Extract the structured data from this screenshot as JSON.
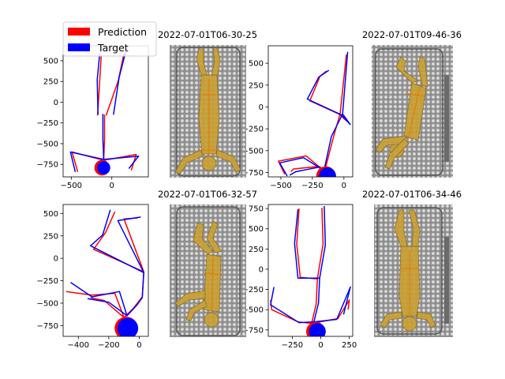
{
  "colors": {
    "prediction": "#ff0000",
    "target": "#0000ff",
    "frame": "#000000",
    "photo_body": "#c9a035"
  },
  "legend": {
    "placement": "top-left",
    "items": [
      {
        "label": "Prediction",
        "color": "#ff0000"
      },
      {
        "label": "Target",
        "color": "#0000ff"
      }
    ]
  },
  "chart_data": [
    {
      "type": "line",
      "title": "",
      "xlim": [
        -600,
        450
      ],
      "ylim": [
        -900,
        680
      ],
      "xticks": [
        {
          "v": -500,
          "label": "−500"
        },
        {
          "v": 0,
          "label": "0"
        }
      ],
      "yticks": [
        {
          "v": 500,
          "label": "500"
        },
        {
          "v": 250,
          "label": "250"
        },
        {
          "v": 0,
          "label": "0"
        },
        {
          "v": -250,
          "label": "−250"
        },
        {
          "v": -500,
          "label": "−500"
        },
        {
          "v": -750,
          "label": "−750"
        }
      ],
      "head": {
        "x": -100,
        "y": -790,
        "r": 60
      },
      "series": [
        {
          "name": "Prediction",
          "color": "#ff0000",
          "strokes": [
            [
              [
                -420,
                -840
              ],
              [
                -490,
                -600
              ],
              [
                -100,
                -700
              ],
              [
                300,
                -630
              ],
              [
                240,
                -820
              ]
            ],
            [
              [
                -100,
                -700
              ],
              [
                -90,
                -450
              ],
              [
                -90,
                -150
              ]
            ],
            [
              [
                -175,
                -160
              ],
              [
                -150,
                250
              ],
              [
                -130,
                560
              ]
            ],
            [
              [
                -70,
                -160
              ],
              [
                80,
                260
              ],
              [
                150,
                590
              ]
            ]
          ]
        },
        {
          "name": "Target",
          "color": "#0000ff",
          "strokes": [
            [
              [
                -450,
                -840
              ],
              [
                -510,
                -600
              ],
              [
                -100,
                -690
              ],
              [
                330,
                -650
              ],
              [
                210,
                -800
              ]
            ],
            [
              [
                -100,
                -690
              ],
              [
                -110,
                -440
              ],
              [
                -110,
                -140
              ]
            ],
            [
              [
                -170,
                -150
              ],
              [
                -180,
                270
              ],
              [
                -150,
                580
              ]
            ],
            [
              [
                20,
                -150
              ],
              [
                90,
                300
              ],
              [
                180,
                640
              ]
            ]
          ]
        }
      ]
    },
    {
      "type": "line",
      "title": "",
      "xlim": [
        -600,
        70
      ],
      "ylim": [
        -800,
        700
      ],
      "xticks": [
        {
          "v": -500,
          "label": "−500"
        },
        {
          "v": -250,
          "label": "−250"
        },
        {
          "v": 0,
          "label": "0"
        }
      ],
      "yticks": [
        {
          "v": 500,
          "label": "500"
        },
        {
          "v": 250,
          "label": "250"
        },
        {
          "v": 0,
          "label": "0"
        },
        {
          "v": -250,
          "label": "−250"
        },
        {
          "v": -500,
          "label": "−500"
        },
        {
          "v": -750,
          "label": "−750"
        }
      ],
      "head": {
        "x": -130,
        "y": -790,
        "r": 55
      },
      "series": [
        {
          "name": "Prediction",
          "color": "#ff0000",
          "strokes": [
            [
              [
                -470,
                -770
              ],
              [
                -520,
                -620
              ],
              [
                -300,
                -560
              ],
              [
                -200,
                -680
              ],
              [
                -400,
                -710
              ],
              [
                -420,
                -740
              ]
            ],
            [
              [
                -200,
                -680
              ],
              [
                -150,
                -720
              ],
              [
                -80,
                -330
              ],
              [
                -30,
                -80
              ],
              [
                30,
                -170
              ],
              [
                -40,
                -80
              ],
              [
                -270,
                70
              ],
              [
                -190,
                350
              ],
              [
                -140,
                410
              ]
            ],
            [
              [
                -30,
                -80
              ],
              [
                20,
                600
              ]
            ]
          ]
        },
        {
          "name": "Target",
          "color": "#0000ff",
          "strokes": [
            [
              [
                -450,
                -790
              ],
              [
                -510,
                -640
              ],
              [
                -320,
                -580
              ],
              [
                -200,
                -690
              ],
              [
                -380,
                -740
              ],
              [
                -430,
                -780
              ]
            ],
            [
              [
                -200,
                -690
              ],
              [
                -160,
                -740
              ],
              [
                -100,
                -340
              ],
              [
                -10,
                -80
              ],
              [
                50,
                -200
              ],
              [
                -20,
                -90
              ],
              [
                -290,
                90
              ],
              [
                -200,
                340
              ],
              [
                -120,
                420
              ]
            ],
            [
              [
                -10,
                -80
              ],
              [
                30,
                630
              ]
            ]
          ]
        }
      ]
    },
    {
      "type": "line",
      "title": "",
      "xlim": [
        -500,
        60
      ],
      "ylim": [
        -870,
        600
      ],
      "xticks": [
        {
          "v": -400,
          "label": "−400"
        },
        {
          "v": -200,
          "label": "−200"
        },
        {
          "v": 0,
          "label": "0"
        }
      ],
      "yticks": [
        {
          "v": 500,
          "label": "500"
        },
        {
          "v": 250,
          "label": "250"
        },
        {
          "v": 0,
          "label": "0"
        },
        {
          "v": -250,
          "label": "−250"
        },
        {
          "v": -500,
          "label": "−500"
        },
        {
          "v": -750,
          "label": "−750"
        }
      ],
      "head": {
        "x": -75,
        "y": -780,
        "r": 58
      },
      "series": [
        {
          "name": "Prediction",
          "color": "#ff0000",
          "strokes": [
            [
              [
                -480,
                -370
              ],
              [
                -310,
                -410
              ],
              [
                -160,
                -390
              ],
              [
                -100,
                -660
              ],
              [
                -230,
                -470
              ],
              [
                -320,
                -440
              ]
            ],
            [
              [
                -100,
                -660
              ],
              [
                -40,
                -560
              ],
              [
                20,
                -430
              ],
              [
                30,
                -150
              ],
              [
                -300,
                100
              ],
              [
                -220,
                290
              ],
              [
                -160,
                520
              ]
            ],
            [
              [
                30,
                -150
              ],
              [
                -100,
                440
              ],
              [
                -10,
                450
              ]
            ]
          ]
        },
        {
          "name": "Target",
          "color": "#0000ff",
          "strokes": [
            [
              [
                -450,
                -270
              ],
              [
                -310,
                -430
              ],
              [
                -130,
                -370
              ],
              [
                -80,
                -640
              ],
              [
                -200,
                -490
              ],
              [
                -340,
                -450
              ]
            ],
            [
              [
                -80,
                -640
              ],
              [
                -20,
                -530
              ],
              [
                20,
                -440
              ],
              [
                30,
                -160
              ],
              [
                -320,
                140
              ],
              [
                -240,
                260
              ],
              [
                -190,
                540
              ]
            ],
            [
              [
                30,
                -160
              ],
              [
                -140,
                420
              ],
              [
                10,
                460
              ]
            ]
          ]
        }
      ]
    },
    {
      "type": "line",
      "title": "",
      "xlim": [
        -460,
        280
      ],
      "ylim": [
        -830,
        800
      ],
      "xticks": [
        {
          "v": -250,
          "label": "−250"
        },
        {
          "v": 0,
          "label": "0"
        },
        {
          "v": 250,
          "label": "250"
        }
      ],
      "yticks": [
        {
          "v": 750,
          "label": "750"
        },
        {
          "v": 500,
          "label": "500"
        },
        {
          "v": 250,
          "label": "250"
        },
        {
          "v": 0,
          "label": "0"
        },
        {
          "v": -250,
          "label": "−250"
        },
        {
          "v": -500,
          "label": "−500"
        },
        {
          "v": -750,
          "label": "−750"
        }
      ],
      "head": {
        "x": -30,
        "y": -770,
        "r": 60
      },
      "series": [
        {
          "name": "Prediction",
          "color": "#ff0000",
          "strokes": [
            [
              [
                -440,
                -380
              ],
              [
                -430,
                -500
              ],
              [
                -200,
                -650
              ],
              [
                -80,
                -670
              ],
              [
                150,
                -610
              ],
              [
                250,
                -380
              ],
              [
                240,
                -500
              ]
            ],
            [
              [
                -80,
                -670
              ],
              [
                -40,
                -430
              ],
              [
                -30,
                -120
              ],
              [
                -180,
                -100
              ],
              [
                -210,
                310
              ],
              [
                -190,
                750
              ]
            ],
            [
              [
                -30,
                -120
              ],
              [
                20,
                310
              ],
              [
                10,
                760
              ]
            ]
          ]
        },
        {
          "name": "Target",
          "color": "#0000ff",
          "strokes": [
            [
              [
                -410,
                -220
              ],
              [
                -440,
                -440
              ],
              [
                -190,
                -660
              ],
              [
                -60,
                -650
              ],
              [
                140,
                -620
              ],
              [
                260,
                -220
              ],
              [
                200,
                -560
              ]
            ],
            [
              [
                -60,
                -650
              ],
              [
                -20,
                -420
              ],
              [
                -10,
                -110
              ],
              [
                -200,
                -110
              ],
              [
                -230,
                320
              ],
              [
                -200,
                740
              ]
            ],
            [
              [
                -10,
                -110
              ],
              [
                40,
                300
              ],
              [
                30,
                780
              ]
            ]
          ]
        }
      ]
    }
  ],
  "photos": [
    {
      "title": "2022-07-01T06-30-25",
      "pose": "supine"
    },
    {
      "title": "2022-07-01T09-46-36",
      "pose": "side"
    },
    {
      "title": "2022-07-01T06-32-57",
      "pose": "curled"
    },
    {
      "title": "2022-07-01T06-34-46",
      "pose": "supine-rotated"
    }
  ]
}
